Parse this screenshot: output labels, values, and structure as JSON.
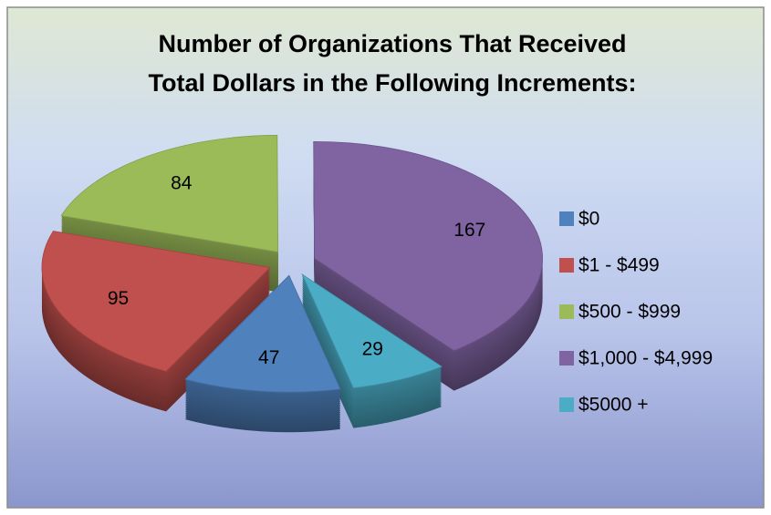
{
  "chart_data": {
    "type": "pie",
    "title": [
      "Number of Organizations That Received",
      "Total Dollars in the Following Increments:"
    ],
    "categories": [
      "$0",
      "$1 - $499",
      "$500 - $999",
      "$1,000 - $4,999",
      "$5000 +"
    ],
    "values": [
      47,
      95,
      84,
      167,
      29
    ],
    "colors": [
      "#4f81bd",
      "#c0504d",
      "#9bbb59",
      "#8064a2",
      "#4bacc6"
    ],
    "start_angle": 167,
    "exploded": true,
    "three_d": true,
    "legend": "right"
  }
}
